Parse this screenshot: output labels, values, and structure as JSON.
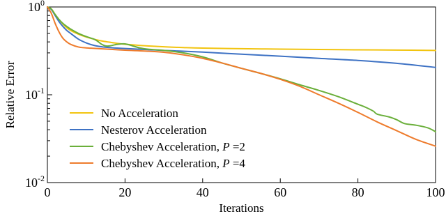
{
  "chart_data": {
    "type": "line",
    "title": "",
    "xlabel": "Iterations",
    "ylabel": "Relative Error",
    "y_scale": "log",
    "xlim": [
      0,
      100
    ],
    "ylim": [
      0.01,
      1
    ],
    "grid": false,
    "legend_position": "bottom-left",
    "x_ticks": [
      0,
      20,
      40,
      60,
      80,
      100
    ],
    "y_ticks": [
      {
        "value": 1,
        "base": "10",
        "exp": "0"
      },
      {
        "value": 0.1,
        "base": "10",
        "exp": "-1"
      },
      {
        "value": 0.01,
        "base": "10",
        "exp": "-2"
      }
    ],
    "series": [
      {
        "name": "No Acceleration",
        "color": "#f2c40f",
        "x": [
          0,
          1,
          2,
          3,
          4,
          5,
          6,
          8,
          10,
          12,
          14,
          16,
          18,
          20,
          25,
          30,
          35,
          40,
          50,
          60,
          70,
          80,
          90,
          100
        ],
        "y": [
          1.0,
          0.95,
          0.82,
          0.72,
          0.64,
          0.58,
          0.54,
          0.49,
          0.455,
          0.43,
          0.41,
          0.397,
          0.385,
          0.376,
          0.362,
          0.352,
          0.345,
          0.34,
          0.335,
          0.331,
          0.328,
          0.325,
          0.323,
          0.32
        ]
      },
      {
        "name": "Nesterov Acceleration",
        "color": "#3e72c4",
        "x": [
          0,
          1,
          2,
          3,
          4,
          5,
          6,
          8,
          10,
          12,
          14,
          16,
          18,
          20,
          25,
          30,
          35,
          40,
          50,
          60,
          70,
          80,
          90,
          100
        ],
        "y": [
          1.0,
          0.94,
          0.8,
          0.68,
          0.6,
          0.54,
          0.5,
          0.43,
          0.39,
          0.365,
          0.352,
          0.345,
          0.34,
          0.336,
          0.328,
          0.32,
          0.313,
          0.306,
          0.29,
          0.275,
          0.26,
          0.246,
          0.228,
          0.205
        ]
      },
      {
        "name": "Chebyshev Acceleration, P=2",
        "color": "#6aaf3a",
        "x": [
          0,
          1,
          2,
          3,
          4,
          5,
          6,
          8,
          10,
          12,
          13,
          14,
          15,
          16,
          18,
          20,
          22,
          24,
          26,
          28,
          30,
          35,
          40,
          45,
          50,
          55,
          60,
          65,
          70,
          75,
          80,
          82,
          84,
          85,
          88,
          90,
          92,
          95,
          98,
          100
        ],
        "y": [
          1.0,
          0.95,
          0.82,
          0.72,
          0.65,
          0.6,
          0.56,
          0.5,
          0.46,
          0.43,
          0.405,
          0.375,
          0.36,
          0.36,
          0.375,
          0.38,
          0.36,
          0.34,
          0.33,
          0.325,
          0.32,
          0.3,
          0.27,
          0.23,
          0.2,
          0.175,
          0.152,
          0.13,
          0.112,
          0.095,
          0.078,
          0.072,
          0.065,
          0.06,
          0.056,
          0.052,
          0.047,
          0.045,
          0.042,
          0.038
        ]
      },
      {
        "name": "Chebyshev Acceleration, P=4",
        "color": "#ee7b2c",
        "x": [
          0,
          1,
          2,
          3,
          4,
          5,
          6,
          8,
          10,
          12,
          15,
          20,
          25,
          30,
          35,
          40,
          45,
          50,
          55,
          60,
          65,
          70,
          75,
          80,
          85,
          90,
          95,
          100
        ],
        "y": [
          1.0,
          0.85,
          0.65,
          0.52,
          0.44,
          0.4,
          0.375,
          0.35,
          0.342,
          0.338,
          0.332,
          0.322,
          0.315,
          0.305,
          0.285,
          0.26,
          0.23,
          0.2,
          0.175,
          0.15,
          0.125,
          0.1,
          0.08,
          0.063,
          0.049,
          0.039,
          0.031,
          0.026
        ]
      }
    ],
    "legend": [
      {
        "text": "No Acceleration"
      },
      {
        "text": "Nesterov Acceleration"
      },
      {
        "text": "Chebyshev Acceleration, ",
        "italic": "P",
        "suffix": " =2"
      },
      {
        "text": "Chebyshev Acceleration, ",
        "italic": "P",
        "suffix": " =4"
      }
    ]
  }
}
